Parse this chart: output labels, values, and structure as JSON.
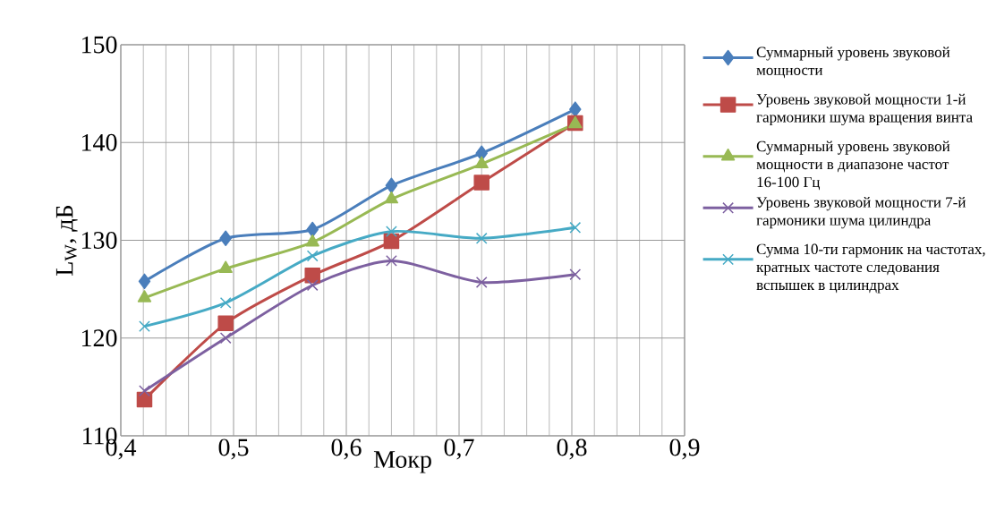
{
  "chart_data": {
    "type": "line",
    "xlabel": "Мокр",
    "ylabel": "L$_{W}$, дБ",
    "xlim": [
      0.4,
      0.9
    ],
    "ylim": [
      110,
      150
    ],
    "xticks": [
      {
        "value": 0.4,
        "label": "0,4"
      },
      {
        "value": 0.5,
        "label": "0,5"
      },
      {
        "value": 0.6,
        "label": "0,6"
      },
      {
        "value": 0.7,
        "label": "0,7"
      },
      {
        "value": 0.8,
        "label": "0,8"
      },
      {
        "value": 0.9,
        "label": "0,9"
      }
    ],
    "yticks": [
      110,
      120,
      130,
      140,
      150
    ],
    "grid": true,
    "legend": "right",
    "line_style": "solid",
    "x": [
      0.421,
      0.493,
      0.57,
      0.64,
      0.72,
      0.803
    ],
    "series": [
      {
        "name": "Суммарный уровень звуковой мощности",
        "color": "#4a7ebb",
        "marker": "diamond",
        "values": [
          125.8,
          130.2,
          131.1,
          135.6,
          138.9,
          143.4
        ]
      },
      {
        "name": "Уровень звуковой мощности 1-й гармоники шума вращения винта",
        "color": "#be4b48",
        "marker": "square",
        "values": [
          113.7,
          121.5,
          126.4,
          129.9,
          135.9,
          142.0
        ]
      },
      {
        "name": "Суммарный уровень звуковой мощности в диапазоне частот 16-100 Гц",
        "color": "#98b954",
        "marker": "triangle",
        "values": [
          124.1,
          127.1,
          129.8,
          134.2,
          137.8,
          141.9
        ]
      },
      {
        "name": "Уровень звуковой мощности 7-й гармоники шума цилиндра",
        "color": "#7d60a0",
        "marker": "cross",
        "values": [
          114.6,
          120.0,
          125.4,
          127.9,
          125.7,
          126.5
        ]
      },
      {
        "name": "Сумма 10-ти гармоник на частотах, кратных частоте следования вспышек в цилиндрах",
        "color": "#46aac5",
        "marker": "cross",
        "values": [
          121.2,
          123.6,
          128.4,
          130.9,
          130.2,
          131.3
        ]
      }
    ]
  }
}
